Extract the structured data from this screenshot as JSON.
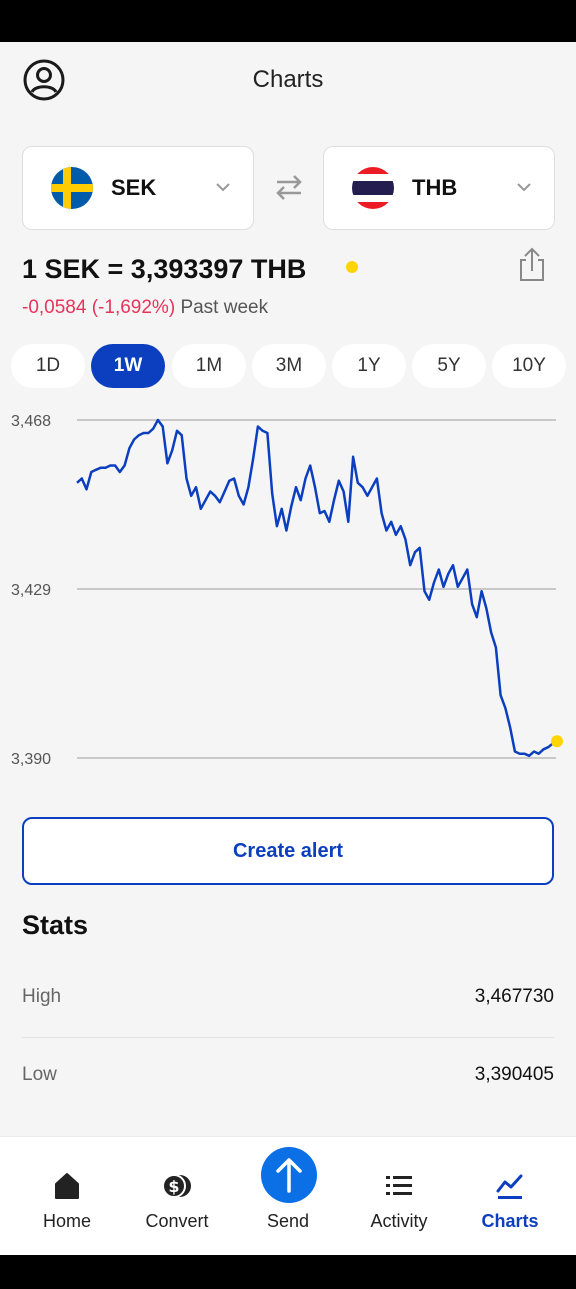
{
  "header": {
    "title": "Charts",
    "profile_icon": "user-circle-icon"
  },
  "currency_from": {
    "code": "SEK",
    "flag_icon": "sweden-flag-icon"
  },
  "currency_to": {
    "code": "THB",
    "flag_icon": "thailand-flag-icon"
  },
  "rate": {
    "text": "1 SEK = 3,393397 THB",
    "change": "-0,0584 (-1,692%)",
    "period": "Past week"
  },
  "ranges": [
    "1D",
    "1W",
    "1M",
    "3M",
    "1Y",
    "5Y",
    "10Y"
  ],
  "selected_range": "1W",
  "chart_data": {
    "type": "line",
    "y_ticks": [
      "3,468",
      "3,429",
      "3,390"
    ],
    "ylim": [
      3.39,
      3.468
    ],
    "series": [
      {
        "values": [
          3.4535,
          3.4545,
          3.452,
          3.456,
          3.4565,
          3.457,
          3.457,
          3.4575,
          3.4575,
          3.456,
          3.4575,
          3.4615,
          3.4635,
          3.4645,
          3.465,
          3.465,
          3.466,
          3.468,
          3.4665,
          3.458,
          3.461,
          3.4655,
          3.4645,
          3.4545,
          3.4505,
          3.4525,
          3.4475,
          3.4495,
          3.4515,
          3.4505,
          3.449,
          3.4515,
          3.454,
          3.4545,
          3.4505,
          3.4485,
          3.4525,
          3.459,
          3.4665,
          3.4655,
          3.465,
          3.451,
          3.4435,
          3.4475,
          3.4425,
          3.448,
          3.4525,
          3.4495,
          3.4545,
          3.4575,
          3.4525,
          3.4465,
          3.447,
          3.4445,
          3.4495,
          3.454,
          3.4515,
          3.4445,
          3.4595,
          3.4535,
          3.4525,
          3.4505,
          3.4525,
          3.4545,
          3.4465,
          3.4425,
          3.4445,
          3.4415,
          3.4435,
          3.4405,
          3.4345,
          3.4375,
          3.4385,
          3.4285,
          3.4265,
          3.4305,
          3.4335,
          3.4295,
          3.4325,
          3.4345,
          3.4295,
          3.4315,
          3.4335,
          3.4255,
          3.4225,
          3.4285,
          3.4245,
          3.419,
          3.4155,
          3.4045,
          3.4015,
          3.397,
          3.3915,
          3.391,
          3.391,
          3.3905,
          3.3915,
          3.391,
          3.392,
          3.3925,
          3.3934
        ]
      }
    ]
  },
  "actions": {
    "create_alert": "Create alert",
    "share_icon": "share-icon",
    "swap_icon": "swap-arrows-icon"
  },
  "stats": {
    "title": "Stats",
    "rows": [
      {
        "label": "High",
        "value": "3,467730"
      },
      {
        "label": "Low",
        "value": "3,390405"
      }
    ]
  },
  "nav": {
    "items": [
      {
        "label": "Home",
        "icon": "home-icon"
      },
      {
        "label": "Convert",
        "icon": "coins-icon"
      },
      {
        "label": "Send",
        "icon": "arrow-up-icon"
      },
      {
        "label": "Activity",
        "icon": "list-icon"
      },
      {
        "label": "Charts",
        "icon": "chart-line-icon"
      }
    ],
    "active": "Charts"
  },
  "colors": {
    "accent": "#0b3fbf",
    "negative": "#e8335b",
    "live_dot": "#ffd400",
    "send_fab": "#0b6fe6"
  }
}
